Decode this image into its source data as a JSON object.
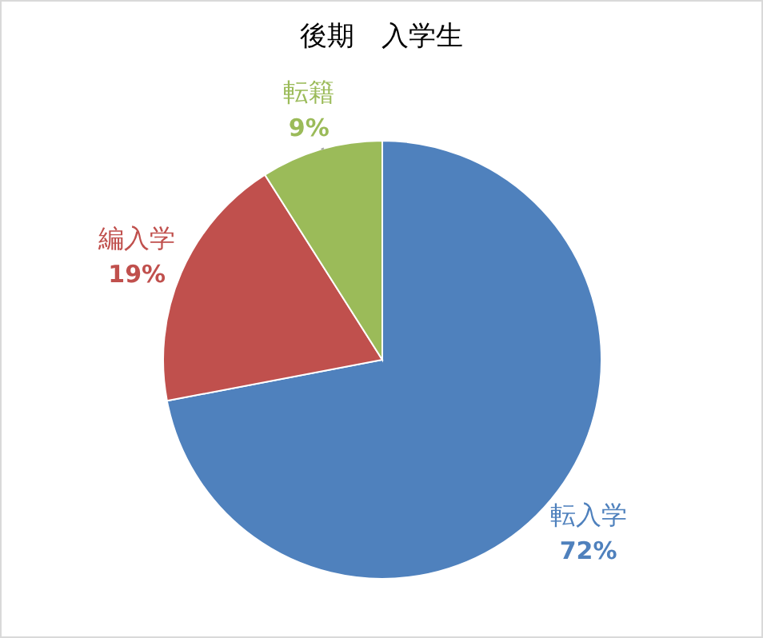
{
  "chart_data": {
    "type": "pie",
    "title": "後期　入学生",
    "categories": [
      "転入学",
      "編入学",
      "転籍"
    ],
    "values": [
      72,
      19,
      9
    ],
    "colors": [
      "#4f81bd",
      "#c0504d",
      "#9bbb59"
    ],
    "value_labels": [
      "72%",
      "19%",
      "9%"
    ]
  }
}
